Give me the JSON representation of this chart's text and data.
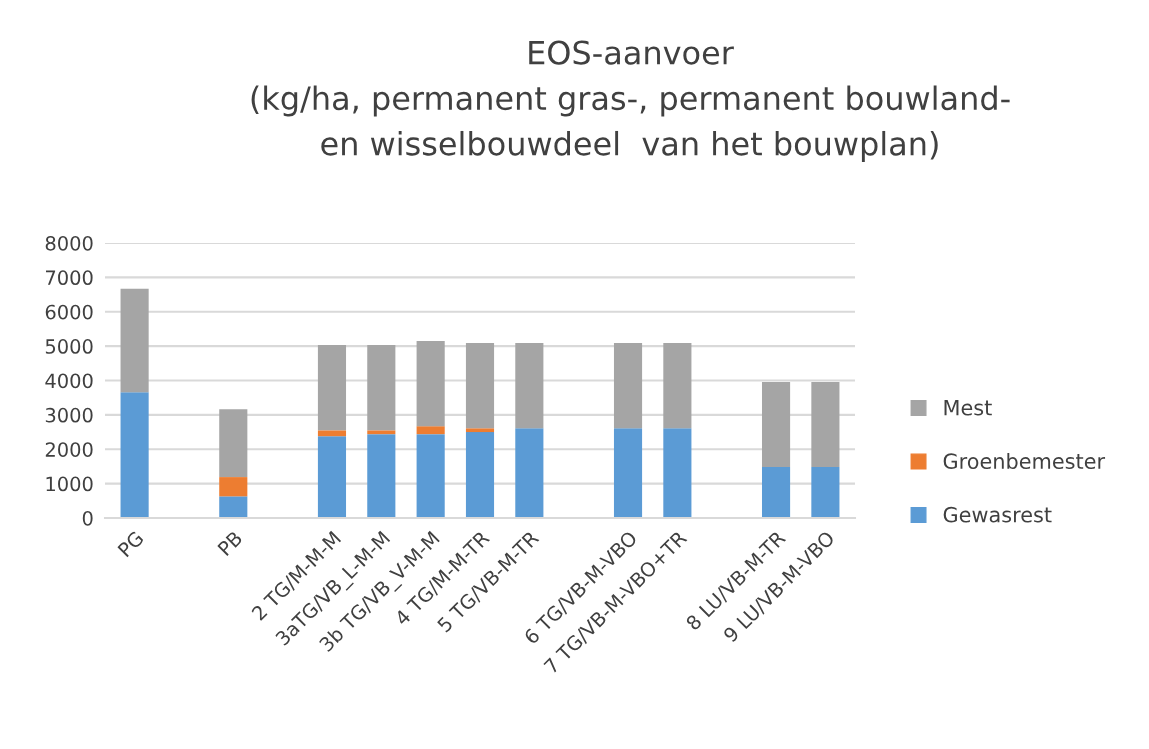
{
  "chart_data": {
    "type": "bar",
    "stacked": true,
    "title": "EOS-aanvoer\n(kg/ha, permanent gras-, permanent bouwland-\nen wisselbouwdeel  van het bouwplan)",
    "categories": [
      "PG",
      null,
      "PB",
      null,
      "2 TG/M-M-M",
      "3aTG/VB_L-M-M",
      "3b TG/VB_V-M-M",
      "4 TG/M-M-TR",
      "5 TG/VB-M-TR",
      null,
      "6 TG/VB-M-VBO",
      "7 TG/VB-M-VBO+TR",
      null,
      "8 LU/VB-M-TR",
      "9 LU/VB-M-VBO"
    ],
    "series": [
      {
        "name": "Gewasrest",
        "color": "#5b9bd5",
        "values": [
          3660,
          null,
          630,
          null,
          2380,
          2440,
          2440,
          2500,
          2610,
          null,
          2610,
          2610,
          null,
          1480,
          1480
        ]
      },
      {
        "name": "Groenbemester",
        "color": "#ed7d31",
        "values": [
          0,
          null,
          560,
          null,
          170,
          110,
          230,
          110,
          0,
          null,
          0,
          0,
          null,
          0,
          0
        ]
      },
      {
        "name": "Mest",
        "color": "#a5a5a5",
        "values": [
          3010,
          null,
          1970,
          null,
          2480,
          2480,
          2480,
          2480,
          2480,
          null,
          2480,
          2480,
          null,
          2480,
          2480
        ]
      }
    ],
    "ylim": [
      0,
      8000
    ],
    "yticks": [
      0,
      1000,
      2000,
      3000,
      4000,
      5000,
      6000,
      7000,
      8000
    ],
    "grid": "y",
    "legend": "right"
  }
}
